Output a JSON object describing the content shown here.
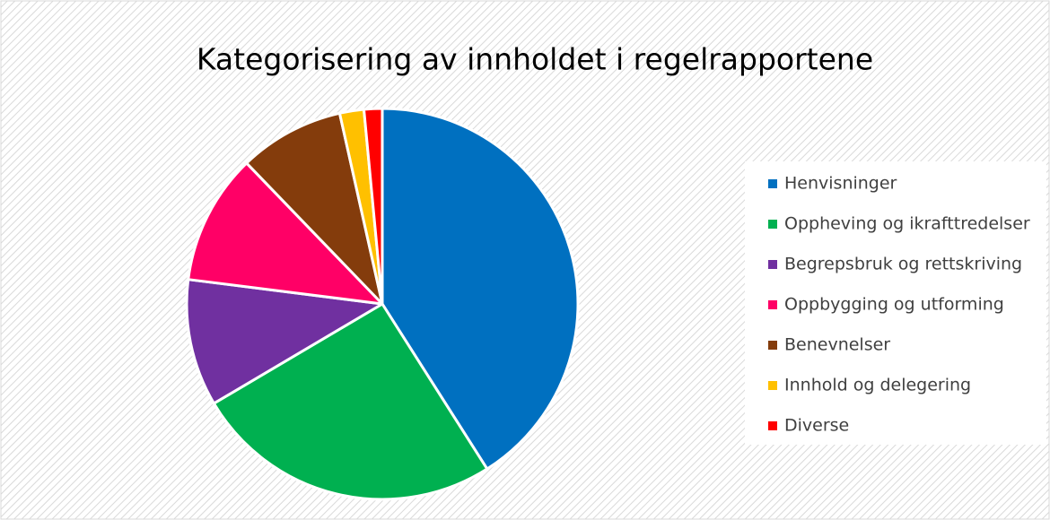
{
  "chart_data": {
    "type": "pie",
    "title": "Kategorisering av innholdet i regelrapportene",
    "categories": [
      "Henvisninger",
      "Oppheving og ikrafttredelser",
      "Begrepsbruk og rettskriving",
      "Oppbygging og utforming",
      "Benevnelser",
      "Innhold og delegering",
      "Diverse"
    ],
    "values": [
      41,
      25.5,
      10.5,
      10.8,
      8.7,
      2,
      1.5
    ],
    "colors": [
      "#0070c0",
      "#00b050",
      "#7030a0",
      "#ff0066",
      "#843c0c",
      "#ffc000",
      "#ff0000"
    ],
    "legend": "right"
  }
}
